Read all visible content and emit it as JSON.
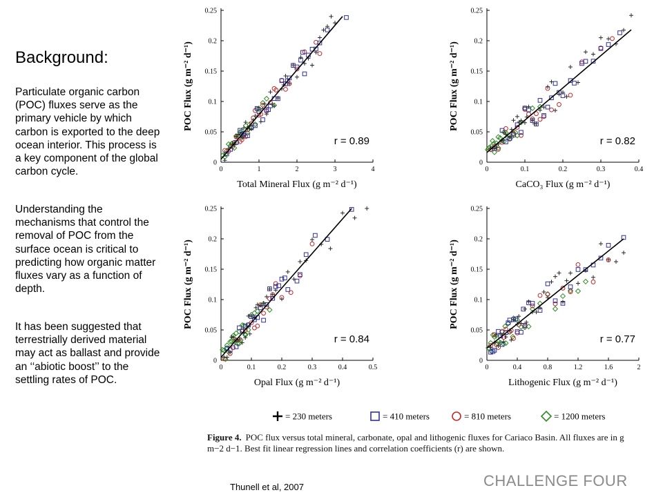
{
  "slide": {
    "heading": "Background:",
    "paragraphs": [
      "Particulate organic carbon (POC) fluxes serve as the primary vehicle by which carbon is exported to the deep ocean interior. This process is a key component of the global carbon cycle.",
      "Understanding the mechanisms that control the removal of POC from the surface ocean is critical to predicting how organic matter fluxes vary as a function of depth.",
      "It has been suggested that terrestrially derived material may act as ballast and provide an ‘‘abiotic boost’’ to the settling rates of POC."
    ],
    "citation": "Thunell et al, 2007",
    "challenge": "CHALLENGE FOUR"
  },
  "figure": {
    "label": "Figure 4.",
    "caption": "POC flux versus total mineral, carbonate, opal and lithogenic fluxes for Cariaco Basin. All fluxes are in g m−2 d−1. Best fit linear regression lines and correlation coefficients (r) are shown."
  },
  "legend": [
    {
      "name": "230 meters",
      "label": "= 230 meters",
      "marker": "plus",
      "color": "#2a2a2a"
    },
    {
      "name": "410 meters",
      "label": "= 410 meters",
      "marker": "square",
      "color": "#2e2e9a"
    },
    {
      "name": "810 meters",
      "label": "= 810 meters",
      "marker": "circle",
      "color": "#c0282a"
    },
    {
      "name": "1200 meters",
      "label": "= 1200 meters",
      "marker": "diamond",
      "color": "#2e8b22"
    }
  ],
  "chart_data": [
    {
      "type": "scatter",
      "ylabel": "POC Flux (g m⁻² d⁻¹)",
      "xlabel": "Total Mineral Flux (g m⁻² d⁻¹)",
      "xlim": [
        0,
        4
      ],
      "ylim": [
        0,
        0.25
      ],
      "xticks": [
        "0",
        "1",
        "2",
        "3",
        "4"
      ],
      "yticks": [
        "0",
        "0.05",
        "0.1",
        "0.15",
        "0.2",
        "0.25"
      ],
      "r_label": "r = 0.89",
      "fit": [
        [
          0,
          0.005
        ],
        [
          3.2,
          0.24
        ]
      ],
      "spread": 0.022,
      "series": [
        {
          "name": "230 meters",
          "x": [
            0.1,
            0.2,
            0.3,
            0.35,
            0.45,
            0.5,
            0.55,
            0.6,
            0.65,
            0.7,
            0.8,
            0.85,
            0.9,
            1.0,
            1.1,
            1.15,
            1.2,
            1.3,
            1.4,
            1.5,
            1.6,
            1.7,
            1.8,
            1.9,
            2.0,
            2.1,
            2.2,
            2.3,
            2.4,
            2.5,
            2.6,
            2.7,
            2.8,
            2.9,
            3.0,
            0.4,
            0.75,
            1.05,
            1.35,
            1.65
          ]
        },
        {
          "name": "410 meters",
          "x": [
            0.15,
            0.25,
            0.4,
            0.5,
            0.6,
            0.7,
            0.8,
            0.9,
            1.0,
            1.1,
            1.2,
            1.3,
            1.4,
            1.5,
            1.6,
            1.7,
            1.8,
            1.9,
            2.0,
            2.1,
            2.2,
            2.3,
            2.5,
            2.6,
            2.8,
            3.3,
            0.55,
            0.95,
            1.25,
            1.75,
            2.15,
            2.4
          ]
        },
        {
          "name": "810 meters",
          "x": [
            0.1,
            0.2,
            0.3,
            0.4,
            0.5,
            0.55,
            0.6,
            0.7,
            0.8,
            0.9,
            1.0,
            1.1,
            1.2,
            1.3,
            1.4,
            1.6,
            1.8,
            2.0,
            2.2,
            2.5,
            2.6,
            0.35,
            0.65,
            0.85,
            1.05,
            1.45,
            1.7
          ]
        },
        {
          "name": "1200 meters",
          "x": [
            0.05,
            0.1,
            0.15,
            0.2,
            0.25,
            0.3,
            0.35,
            0.4,
            0.45,
            0.5,
            0.55,
            0.6,
            0.65,
            0.7,
            0.75,
            0.8,
            0.9,
            1.0,
            1.1,
            1.2,
            1.4,
            0.12,
            0.28,
            0.42,
            0.58,
            0.72,
            0.95
          ]
        }
      ]
    },
    {
      "type": "scatter",
      "ylabel": "POC Flux (g m⁻² d⁻¹)",
      "xlabel": "CaCO₃ Flux (g m⁻² d⁻¹)",
      "xlim": [
        0,
        0.4
      ],
      "ylim": [
        0,
        0.25
      ],
      "xticks": [
        "0",
        "0.1",
        "0.2",
        "0.3",
        "0.4"
      ],
      "yticks": [
        "0",
        "0.05",
        "0.1",
        "0.15",
        "0.2",
        "0.25"
      ],
      "r_label": "r = 0.82",
      "fit": [
        [
          0,
          0.016
        ],
        [
          0.38,
          0.218
        ]
      ],
      "spread": 0.03,
      "series": [
        {
          "name": "230 meters",
          "x": [
            0.01,
            0.02,
            0.03,
            0.04,
            0.05,
            0.06,
            0.07,
            0.08,
            0.09,
            0.1,
            0.11,
            0.12,
            0.13,
            0.14,
            0.15,
            0.16,
            0.17,
            0.18,
            0.19,
            0.2,
            0.21,
            0.22,
            0.24,
            0.26,
            0.28,
            0.3,
            0.32,
            0.34,
            0.36,
            0.38,
            0.025,
            0.045,
            0.065,
            0.085,
            0.105,
            0.125
          ]
        },
        {
          "name": "410 meters",
          "x": [
            0.02,
            0.04,
            0.05,
            0.06,
            0.08,
            0.1,
            0.12,
            0.14,
            0.16,
            0.18,
            0.2,
            0.22,
            0.25,
            0.28,
            0.3,
            0.35,
            0.07,
            0.09,
            0.11,
            0.13,
            0.15,
            0.17,
            0.19,
            0.23,
            0.26,
            0.32
          ]
        },
        {
          "name": "810 meters",
          "x": [
            0.01,
            0.02,
            0.03,
            0.05,
            0.07,
            0.09,
            0.11,
            0.13,
            0.15,
            0.17,
            0.19,
            0.22,
            0.25,
            0.3,
            0.33,
            0.04,
            0.06,
            0.08,
            0.1,
            0.12,
            0.14,
            0.16
          ]
        },
        {
          "name": "1200 meters",
          "x": [
            0.002,
            0.005,
            0.008,
            0.01,
            0.012,
            0.015,
            0.018,
            0.02,
            0.025,
            0.03,
            0.035,
            0.04,
            0.045,
            0.05,
            0.055,
            0.06,
            0.065,
            0.07,
            0.08,
            0.09,
            0.1,
            0.12,
            0.14,
            0.03,
            0.045,
            0.075
          ]
        }
      ]
    },
    {
      "type": "scatter",
      "ylabel": "POC Flux (g m⁻² d⁻¹)",
      "xlabel": "Opal Flux (g m⁻² d⁻¹)",
      "xlim": [
        0,
        0.5
      ],
      "ylim": [
        0,
        0.25
      ],
      "xticks": [
        "0",
        "0.1",
        "0.2",
        "0.3",
        "0.4",
        "0.5"
      ],
      "yticks": [
        "0",
        "0.05",
        "0.1",
        "0.15",
        "0.2",
        "0.25"
      ],
      "r_label": "r = 0.84",
      "fit": [
        [
          0,
          0.005
        ],
        [
          0.43,
          0.25
        ]
      ],
      "spread": 0.028,
      "series": [
        {
          "name": "230 meters",
          "x": [
            0.01,
            0.02,
            0.03,
            0.04,
            0.05,
            0.06,
            0.07,
            0.08,
            0.09,
            0.1,
            0.11,
            0.12,
            0.13,
            0.14,
            0.15,
            0.16,
            0.17,
            0.18,
            0.2,
            0.22,
            0.24,
            0.26,
            0.28,
            0.3,
            0.33,
            0.36,
            0.4,
            0.44,
            0.48,
            0.035,
            0.055,
            0.075,
            0.095,
            0.115
          ]
        },
        {
          "name": "410 meters",
          "x": [
            0.02,
            0.03,
            0.05,
            0.07,
            0.09,
            0.1,
            0.12,
            0.14,
            0.16,
            0.18,
            0.2,
            0.22,
            0.25,
            0.28,
            0.31,
            0.35,
            0.43,
            0.06,
            0.08,
            0.11,
            0.13,
            0.15,
            0.17,
            0.19,
            0.21,
            0.26
          ]
        },
        {
          "name": "810 meters",
          "x": [
            0.01,
            0.03,
            0.04,
            0.06,
            0.08,
            0.1,
            0.12,
            0.14,
            0.16,
            0.18,
            0.2,
            0.23,
            0.26,
            0.3,
            0.05,
            0.07,
            0.09,
            0.11,
            0.13,
            0.15,
            0.17
          ]
        },
        {
          "name": "1200 meters",
          "x": [
            0.005,
            0.01,
            0.015,
            0.02,
            0.025,
            0.03,
            0.035,
            0.04,
            0.045,
            0.05,
            0.055,
            0.06,
            0.065,
            0.07,
            0.075,
            0.08,
            0.09,
            0.1,
            0.11,
            0.12,
            0.14,
            0.16,
            0.02,
            0.04,
            0.06,
            0.08
          ]
        }
      ]
    },
    {
      "type": "scatter",
      "ylabel": "POC Flux (g m⁻² d⁻¹)",
      "xlabel": "Lithogenic Flux (g m⁻² d⁻¹)",
      "xlim": [
        0,
        2
      ],
      "ylim": [
        0,
        0.25
      ],
      "xticks": [
        "0",
        "0.4",
        "0.8",
        "1.2",
        "1.6",
        "2"
      ],
      "yticks": [
        "0",
        "0.05",
        "0.1",
        "0.15",
        "0.2",
        "0.25"
      ],
      "r_label": "r = 0.77",
      "fit": [
        [
          0,
          0.02
        ],
        [
          1.8,
          0.2
        ]
      ],
      "spread": 0.032,
      "series": [
        {
          "name": "230 meters",
          "x": [
            0.05,
            0.1,
            0.15,
            0.2,
            0.25,
            0.3,
            0.35,
            0.4,
            0.45,
            0.5,
            0.55,
            0.6,
            0.65,
            0.7,
            0.75,
            0.8,
            0.85,
            0.9,
            0.95,
            1.0,
            1.05,
            1.1,
            1.2,
            1.3,
            1.4,
            1.5,
            1.6,
            1.7,
            1.8,
            0.12,
            0.22,
            0.32,
            0.42,
            0.52
          ]
        },
        {
          "name": "410 meters",
          "x": [
            0.05,
            0.1,
            0.15,
            0.2,
            0.25,
            0.3,
            0.35,
            0.4,
            0.45,
            0.5,
            0.55,
            0.6,
            0.7,
            0.8,
            0.9,
            1.0,
            1.1,
            1.2,
            1.3,
            1.4,
            1.5,
            1.6,
            1.8,
            0.08,
            0.18,
            0.28,
            0.38,
            0.48
          ]
        },
        {
          "name": "810 meters",
          "x": [
            0.05,
            0.1,
            0.15,
            0.2,
            0.25,
            0.3,
            0.35,
            0.4,
            0.5,
            0.6,
            0.7,
            0.8,
            0.9,
            1.0,
            1.1,
            1.2,
            1.4,
            1.6,
            0.12,
            0.22,
            0.32,
            0.42
          ]
        },
        {
          "name": "1200 meters",
          "x": [
            0.02,
            0.05,
            0.08,
            0.1,
            0.12,
            0.15,
            0.18,
            0.2,
            0.22,
            0.25,
            0.28,
            0.3,
            0.35,
            0.4,
            0.45,
            0.5,
            0.55,
            0.6,
            0.7,
            0.8,
            0.9,
            1.0,
            1.1,
            1.2,
            1.3,
            0.06,
            0.14,
            0.24,
            0.34
          ]
        }
      ]
    }
  ]
}
